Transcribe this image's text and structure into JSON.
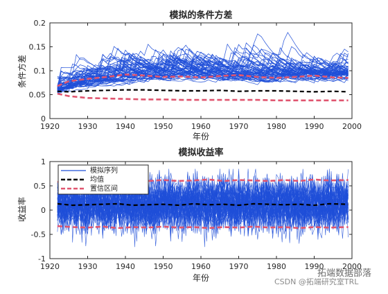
{
  "chart_data": [
    {
      "type": "line",
      "title": "模拟的条件方差",
      "xlabel": "年份",
      "ylabel": "条件方差",
      "xlim": [
        1920,
        2000
      ],
      "ylim": [
        0,
        0.2
      ],
      "xticks": [
        "1920",
        "1930",
        "1940",
        "1950",
        "1960",
        "1970",
        "1980",
        "1990",
        "2000"
      ],
      "yticks": [
        "0",
        "0.05",
        "0.1",
        "0.15",
        "0.2"
      ],
      "grid": false,
      "legend": null,
      "colors": {
        "simulated": "#1f4fd8",
        "mean": "#000000",
        "interval": "#e0556f"
      },
      "series": [
        {
          "role": "simulated-paths",
          "x_start": 1922,
          "x_end": 1999,
          "base": 0.057,
          "lowest": 0.035,
          "highest": 0.18
        },
        {
          "role": "mean",
          "x": [
            1922,
            1925,
            1930,
            1935,
            1940,
            1945,
            1950,
            1955,
            1960,
            1965,
            1970,
            1975,
            1980,
            1985,
            1990,
            1995,
            1999
          ],
          "values": [
            0.057,
            0.056,
            0.058,
            0.059,
            0.06,
            0.06,
            0.059,
            0.058,
            0.058,
            0.059,
            0.057,
            0.058,
            0.058,
            0.057,
            0.056,
            0.057,
            0.056
          ]
        },
        {
          "role": "interval-upper",
          "x": [
            1922,
            1925,
            1930,
            1935,
            1940,
            1945,
            1950,
            1955,
            1960,
            1965,
            1970,
            1975,
            1980,
            1985,
            1990,
            1995,
            1999
          ],
          "values": [
            0.068,
            0.078,
            0.083,
            0.087,
            0.092,
            0.09,
            0.087,
            0.088,
            0.086,
            0.089,
            0.091,
            0.087,
            0.085,
            0.087,
            0.09,
            0.086,
            0.085
          ]
        },
        {
          "role": "interval-lower",
          "x": [
            1922,
            1925,
            1930,
            1935,
            1940,
            1945,
            1950,
            1955,
            1960,
            1965,
            1970,
            1975,
            1980,
            1985,
            1990,
            1995,
            1999
          ],
          "values": [
            0.052,
            0.047,
            0.043,
            0.042,
            0.041,
            0.04,
            0.04,
            0.039,
            0.039,
            0.039,
            0.039,
            0.039,
            0.038,
            0.038,
            0.038,
            0.038,
            0.038
          ]
        }
      ]
    },
    {
      "type": "line",
      "title": "模拟收益率",
      "xlabel": "年份",
      "ylabel": "收益率",
      "xlim": [
        1920,
        2000
      ],
      "ylim": [
        -1,
        1
      ],
      "xticks": [
        "1920",
        "1930",
        "1940",
        "1950",
        "1960",
        "1970",
        "1980",
        "1990",
        "2000"
      ],
      "yticks": [
        "-1",
        "-0.5",
        "0",
        "0.5",
        "1"
      ],
      "grid": false,
      "legend": "top-left",
      "colors": {
        "simulated": "#1f4fd8",
        "mean": "#000000",
        "interval": "#e0556f"
      },
      "series": [
        {
          "name": "模拟序列",
          "role": "simulated-paths",
          "x_start": 1922,
          "x_end": 1999,
          "lowest": -0.85,
          "highest": 0.85
        },
        {
          "name": "均值",
          "role": "mean",
          "x": [
            1922,
            1926,
            1930,
            1934,
            1938,
            1942,
            1946,
            1950,
            1954,
            1958,
            1962,
            1966,
            1970,
            1974,
            1978,
            1982,
            1986,
            1990,
            1994,
            1999
          ],
          "values": [
            0.13,
            0.1,
            0.11,
            0.12,
            0.13,
            0.1,
            0.11,
            0.12,
            0.1,
            0.13,
            0.11,
            0.12,
            0.1,
            0.13,
            0.12,
            0.11,
            0.12,
            0.1,
            0.13,
            0.12
          ]
        },
        {
          "name": "置信区间",
          "role": "interval-upper",
          "x": [
            1922,
            1926,
            1930,
            1934,
            1938,
            1942,
            1946,
            1950,
            1954,
            1958,
            1962,
            1966,
            1970,
            1974,
            1978,
            1982,
            1986,
            1990,
            1994,
            1999
          ],
          "values": [
            0.58,
            0.6,
            0.62,
            0.6,
            0.63,
            0.61,
            0.6,
            0.62,
            0.6,
            0.61,
            0.63,
            0.6,
            0.62,
            0.61,
            0.6,
            0.62,
            0.6,
            0.63,
            0.61,
            0.62
          ]
        },
        {
          "role": "interval-lower",
          "x": [
            1922,
            1926,
            1930,
            1934,
            1938,
            1942,
            1946,
            1950,
            1954,
            1958,
            1962,
            1966,
            1970,
            1974,
            1978,
            1982,
            1986,
            1990,
            1994,
            1999
          ],
          "values": [
            -0.33,
            -0.35,
            -0.36,
            -0.34,
            -0.37,
            -0.35,
            -0.36,
            -0.34,
            -0.36,
            -0.35,
            -0.37,
            -0.35,
            -0.36,
            -0.34,
            -0.36,
            -0.35,
            -0.37,
            -0.35,
            -0.36,
            -0.35
          ]
        }
      ]
    }
  ],
  "watermark": {
    "line1": "拓端数据部落",
    "line2": "CSDN @拓端研究室TRL"
  }
}
